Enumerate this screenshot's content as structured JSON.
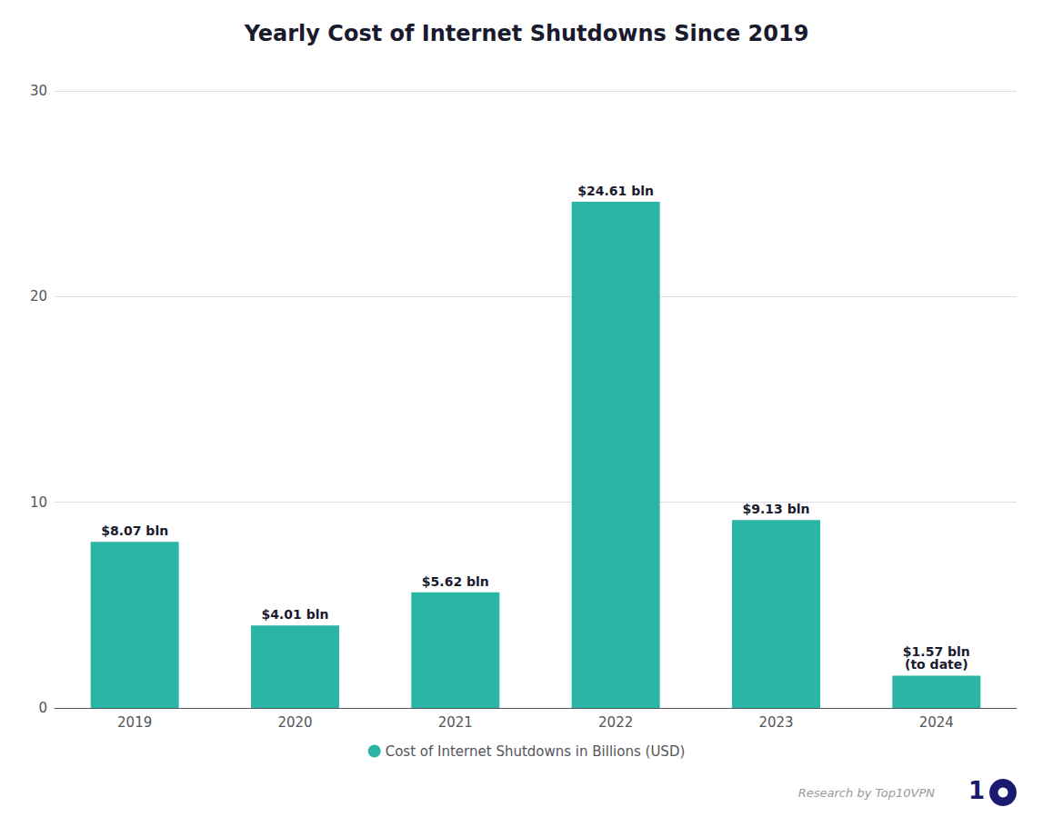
{
  "chart_data": {
    "type": "bar",
    "title": "Yearly Cost of Internet Shutdowns Since 2019",
    "categories": [
      "2019",
      "2020",
      "2021",
      "2022",
      "2023",
      "2024"
    ],
    "series": [
      {
        "name": "Cost of Internet Shutdowns in Billions (USD)",
        "color": "#2ab5a5",
        "values": [
          8.07,
          4.01,
          5.62,
          24.61,
          9.13,
          1.57
        ],
        "value_labels": [
          "$8.07 bln",
          "$4.01 bln",
          "$5.62 bln",
          "$24.61 bln",
          "$9.13 bln",
          "$1.57 bln\n(to date)"
        ]
      }
    ],
    "data_labels": true,
    "ylim": [
      0,
      30
    ],
    "yticks": [
      0,
      10,
      20,
      30
    ],
    "grid": true,
    "legend": "bottom",
    "annotations": [
      {
        "text": "Research by Top10VPN"
      },
      {
        "text": "1",
        "color": "#1a1a6e"
      }
    ]
  }
}
